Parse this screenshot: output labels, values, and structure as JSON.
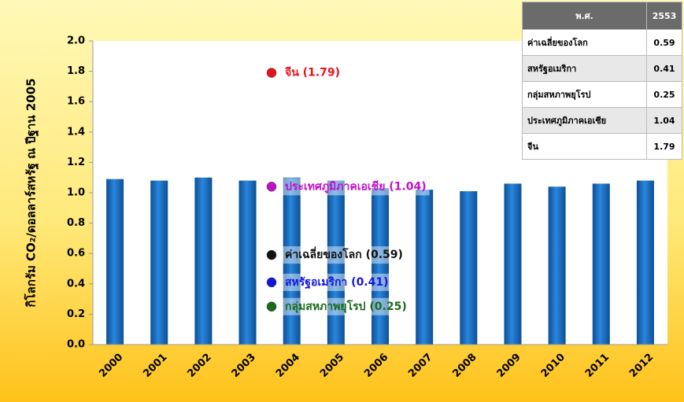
{
  "chart_data": {
    "type": "bar",
    "y_label": "กิโลกรัม CO₂/ดอลลาร์สหรัฐ ณ ปีฐาน 2005",
    "categories": [
      "2000",
      "2001",
      "2002",
      "2003",
      "2004",
      "2005",
      "2006",
      "2007",
      "2008",
      "2009",
      "2010",
      "2011",
      "2012"
    ],
    "values": [
      1.09,
      1.08,
      1.1,
      1.08,
      1.1,
      1.08,
      1.03,
      1.02,
      1.01,
      1.06,
      1.04,
      1.06,
      1.08
    ],
    "color": "#1c6fc4",
    "ylim": [
      0,
      2
    ],
    "yticks": [
      {
        "value": 0,
        "label": "0.0"
      },
      0.2,
      0.4,
      0.6,
      0.8,
      {
        "value": 1,
        "label": "1.0"
      },
      1.2,
      1.4,
      1.6,
      1.8,
      {
        "value": 2,
        "label": "2.0"
      }
    ],
    "annotations": [
      {
        "label": "จีน  (1.79)",
        "value": 1.79,
        "color": "#e8121a"
      },
      {
        "label": "ประเทศภูมิภาคเอเชีย  (1.04)",
        "value": 1.04,
        "color": "#c010c8"
      },
      {
        "label": "ค่าเฉลี่ยของโลก  (0.59)",
        "value": 0.59,
        "color": "#111111"
      },
      {
        "label": "สหรัฐอเมริกา  (0.41)",
        "value": 0.41,
        "color": "#1515e0"
      },
      {
        "label": "กลุ่มสหภาพยุโรป  (0.25)",
        "value": 0.25,
        "color": "#1a6a1a"
      }
    ]
  },
  "table": {
    "header": [
      "พ.ศ.",
      "2553"
    ],
    "rows": [
      [
        "ค่าเฉลี่ยของโลก",
        "0.59"
      ],
      [
        "สหรัฐอเมริกา",
        "0.41"
      ],
      [
        "กลุ่มสหภาพยุโรป",
        "0.25"
      ],
      [
        "ประเทศภูมิภาคเอเชีย",
        "1.04"
      ],
      [
        "จีน",
        "1.79"
      ]
    ]
  }
}
